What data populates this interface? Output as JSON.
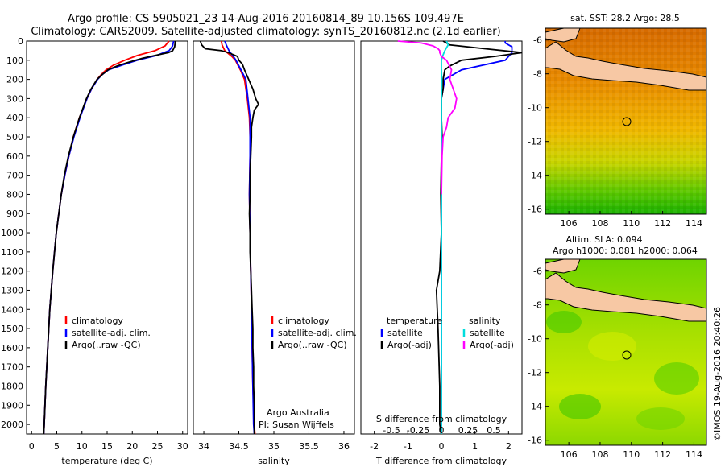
{
  "title": {
    "line1": "Argo profile: CS 5905021_23 14-Aug-2016 20160814_89 10.156S 109.497E",
    "line2": "Climatology: CARS2009. Satellite-adjusted climatology: synTS_20160812.nc (2.1d earlier)"
  },
  "side_stamp": "©IMOS 19-Aug-2016 20:40:26",
  "colors": {
    "climatology": "#ff0000",
    "satellite": "#0000ff",
    "argo": "#000000",
    "satellite_diff_s": "#00dddd",
    "argo_diff_s": "#ff00ff",
    "land": "#f7c8a4"
  },
  "chart_data": [
    {
      "id": "temperature",
      "type": "line",
      "xlabel": "temperature (deg C)",
      "ylim": [
        2050,
        0
      ],
      "xlim": [
        -1,
        31
      ],
      "xticks": [
        0,
        5,
        10,
        15,
        20,
        25,
        30
      ],
      "yticks": [
        0,
        100,
        200,
        300,
        400,
        500,
        600,
        700,
        800,
        900,
        1000,
        1100,
        1200,
        1300,
        1400,
        1500,
        1600,
        1700,
        1800,
        1900,
        2000
      ],
      "legend": [
        "climatology",
        "satellite-adj. clim.",
        "Argo(..raw -QC)"
      ],
      "series": [
        {
          "name": "climatology",
          "color": "#ff0000",
          "depth": [
            0,
            25,
            50,
            75,
            100,
            125,
            150,
            175,
            200,
            250,
            300,
            400,
            500,
            600,
            700,
            800,
            900,
            1000,
            1200,
            1400,
            1600,
            1800,
            2000,
            2050
          ],
          "values": [
            27.3,
            26.5,
            24.5,
            21.0,
            18.5,
            16.3,
            14.8,
            13.8,
            13.0,
            11.9,
            11.0,
            9.5,
            8.3,
            7.4,
            6.6,
            5.9,
            5.4,
            4.9,
            4.2,
            3.6,
            3.2,
            2.8,
            2.5,
            2.4
          ]
        },
        {
          "name": "satellite-adj. clim.",
          "color": "#0000ff",
          "depth": [
            0,
            25,
            50,
            75,
            100,
            125,
            150,
            175,
            200,
            250,
            300,
            400,
            500,
            600,
            700,
            800,
            900,
            1000,
            1200,
            1400,
            1600,
            1800,
            2000,
            2050
          ],
          "values": [
            28.2,
            28.0,
            27.3,
            24.8,
            21.0,
            18.0,
            15.3,
            14.0,
            13.1,
            11.9,
            11.0,
            9.6,
            8.4,
            7.4,
            6.6,
            5.9,
            5.4,
            4.9,
            4.2,
            3.6,
            3.2,
            2.8,
            2.5,
            2.4
          ]
        },
        {
          "name": "Argo(..raw -QC)",
          "color": "#000000",
          "depth": [
            0,
            10,
            30,
            50,
            60,
            75,
            90,
            110,
            130,
            150,
            175,
            200,
            250,
            300,
            400,
            500,
            600,
            700,
            800,
            900,
            1000,
            1200,
            1400,
            1600,
            1800,
            2000,
            2050
          ],
          "values": [
            28.5,
            28.5,
            28.4,
            28.0,
            27.2,
            24.5,
            22.0,
            19.3,
            17.0,
            15.2,
            14.0,
            13.0,
            11.8,
            10.9,
            9.5,
            8.3,
            7.3,
            6.5,
            5.9,
            5.4,
            4.9,
            4.2,
            3.6,
            3.2,
            2.8,
            2.5,
            2.4
          ]
        }
      ]
    },
    {
      "id": "salinity",
      "type": "line",
      "xlabel": "salinity",
      "ylim": [
        2050,
        0
      ],
      "xlim": [
        33.85,
        36.15
      ],
      "xticks": [
        34,
        34.5,
        35,
        35.5,
        36
      ],
      "legend": [
        "climatology",
        "satellite-adj. clim.",
        "Argo(..raw -QC)"
      ],
      "series": [
        {
          "name": "climatology",
          "color": "#ff0000",
          "depth": [
            0,
            20,
            50,
            80,
            100,
            150,
            200,
            300,
            400,
            500,
            600,
            800,
            1000,
            1200,
            1400,
            1600,
            1800,
            2000,
            2050
          ],
          "values": [
            34.25,
            34.26,
            34.3,
            34.4,
            34.45,
            34.52,
            34.58,
            34.62,
            34.65,
            34.66,
            34.66,
            34.65,
            34.66,
            34.67,
            34.68,
            34.69,
            34.7,
            34.72,
            34.73
          ]
        },
        {
          "name": "satellite-adj. clim.",
          "color": "#0000ff",
          "depth": [
            0,
            20,
            50,
            80,
            100,
            150,
            200,
            300,
            400,
            500,
            600,
            800,
            1000,
            1200,
            1400,
            1600,
            1800,
            2000,
            2050
          ],
          "values": [
            34.3,
            34.32,
            34.36,
            34.42,
            34.46,
            34.53,
            34.6,
            34.63,
            34.66,
            34.66,
            34.66,
            34.65,
            34.66,
            34.67,
            34.68,
            34.69,
            34.7,
            34.71,
            34.72
          ]
        },
        {
          "name": "Argo(..raw -QC)",
          "color": "#000000",
          "depth": [
            0,
            20,
            40,
            50,
            60,
            80,
            100,
            120,
            150,
            200,
            250,
            300,
            330,
            360,
            400,
            450,
            500,
            600,
            700,
            800,
            900,
            1000,
            1100,
            1200,
            1300,
            1400,
            1500,
            1600,
            1700,
            1800,
            1900,
            2000,
            2050
          ],
          "values": [
            33.95,
            33.97,
            34.02,
            34.25,
            34.35,
            34.48,
            34.5,
            34.55,
            34.58,
            34.64,
            34.7,
            34.74,
            34.78,
            34.72,
            34.7,
            34.68,
            34.68,
            34.67,
            34.66,
            34.66,
            34.65,
            34.66,
            34.66,
            34.67,
            34.68,
            34.69,
            34.7,
            34.7,
            34.71,
            34.71,
            34.72,
            34.72,
            34.72
          ]
        }
      ]
    },
    {
      "id": "difference",
      "type": "line",
      "xlabel": "T difference from climatology",
      "xlabel_top": "S difference from climatology",
      "ylim": [
        2050,
        0
      ],
      "xlim": [
        -2.4,
        2.4
      ],
      "xticks": [
        -2,
        -1,
        0,
        1,
        2
      ],
      "s_ticks": [
        "-0.5",
        "-0.25",
        "0",
        "0.25",
        "0.5"
      ],
      "legend_temperature_title": "temperature",
      "legend_salinity_title": "salinity",
      "legend_temperature": [
        "satellite",
        "Argo(-adj)"
      ],
      "legend_salinity": [
        "satellite",
        "Argo(-adj)"
      ],
      "series": [
        {
          "name": "satellite",
          "color": "#0000ff",
          "depth": [
            0,
            10,
            30,
            60,
            100,
            150,
            200,
            300,
            500,
            800,
            1000,
            1500,
            2000,
            2050
          ],
          "values": [
            1.9,
            1.9,
            2.1,
            2.1,
            1.9,
            0.6,
            0.1,
            0.0,
            0.0,
            0.0,
            0.0,
            0.0,
            0.0,
            0.0
          ]
        },
        {
          "name": "Argo(-adj)",
          "color": "#000000",
          "depth": [
            0,
            20,
            40,
            60,
            80,
            100,
            130,
            150,
            200,
            250,
            300,
            400,
            500,
            600,
            800,
            1000,
            1200,
            1300,
            1500,
            1800,
            2000,
            2050
          ],
          "values": [
            0.05,
            0.25,
            1.3,
            2.4,
            1.6,
            0.6,
            0.25,
            0.1,
            0.05,
            0.05,
            0.0,
            0.0,
            0.02,
            0.0,
            -0.02,
            0.0,
            -0.05,
            -0.15,
            -0.1,
            -0.05,
            -0.05,
            0.0
          ]
        },
        {
          "name": "satellite (S)",
          "color": "#00dddd",
          "depth": [
            0,
            20,
            50,
            80,
            100,
            150,
            200,
            300,
            500,
            800,
            1000,
            1500,
            2000,
            2050
          ],
          "values": [
            0.15,
            0.2,
            0.1,
            0.03,
            0.0,
            0.0,
            0.01,
            0.0,
            0.0,
            0.0,
            0.0,
            0.0,
            0.0,
            0.0
          ]
        },
        {
          "name": "Argo(-adj) (S)",
          "color": "#ff00ff",
          "depth": [
            0,
            10,
            25,
            40,
            50,
            60,
            80,
            100,
            150,
            200,
            250,
            300,
            350,
            400,
            450,
            500,
            600,
            800
          ],
          "values": [
            -1.3,
            -0.6,
            -0.25,
            -0.1,
            -0.05,
            -0.05,
            0.0,
            0.15,
            0.3,
            0.25,
            0.35,
            0.45,
            0.4,
            0.2,
            0.15,
            0.05,
            0.02,
            0.0
          ]
        }
      ]
    },
    {
      "id": "sst_map",
      "type": "heatmap",
      "title": "sat. SST: 28.2 Argo: 28.5",
      "xticks": [
        "106",
        "108",
        "110",
        "112",
        "114"
      ],
      "yticks": [
        "-6",
        "-8",
        "-10",
        "-12",
        "-14",
        "-16"
      ],
      "xlim": [
        104.5,
        114.8
      ],
      "ylim": [
        -16.3,
        -5.3
      ],
      "marker": {
        "lon": 109.497,
        "lat": -10.156
      }
    },
    {
      "id": "sla_map",
      "type": "heatmap",
      "title_line1": "Altim. SLA: 0.094",
      "title_line2": "Argo h1000: 0.081 h2000: 0.064",
      "xticks": [
        "106",
        "108",
        "110",
        "112",
        "114"
      ],
      "yticks": [
        "-6",
        "-8",
        "-10",
        "-12",
        "-14",
        "-16"
      ],
      "xlim": [
        104.5,
        114.8
      ],
      "ylim": [
        -16.3,
        -5.3
      ],
      "marker": {
        "lon": 109.497,
        "lat": -10.156
      }
    }
  ]
}
